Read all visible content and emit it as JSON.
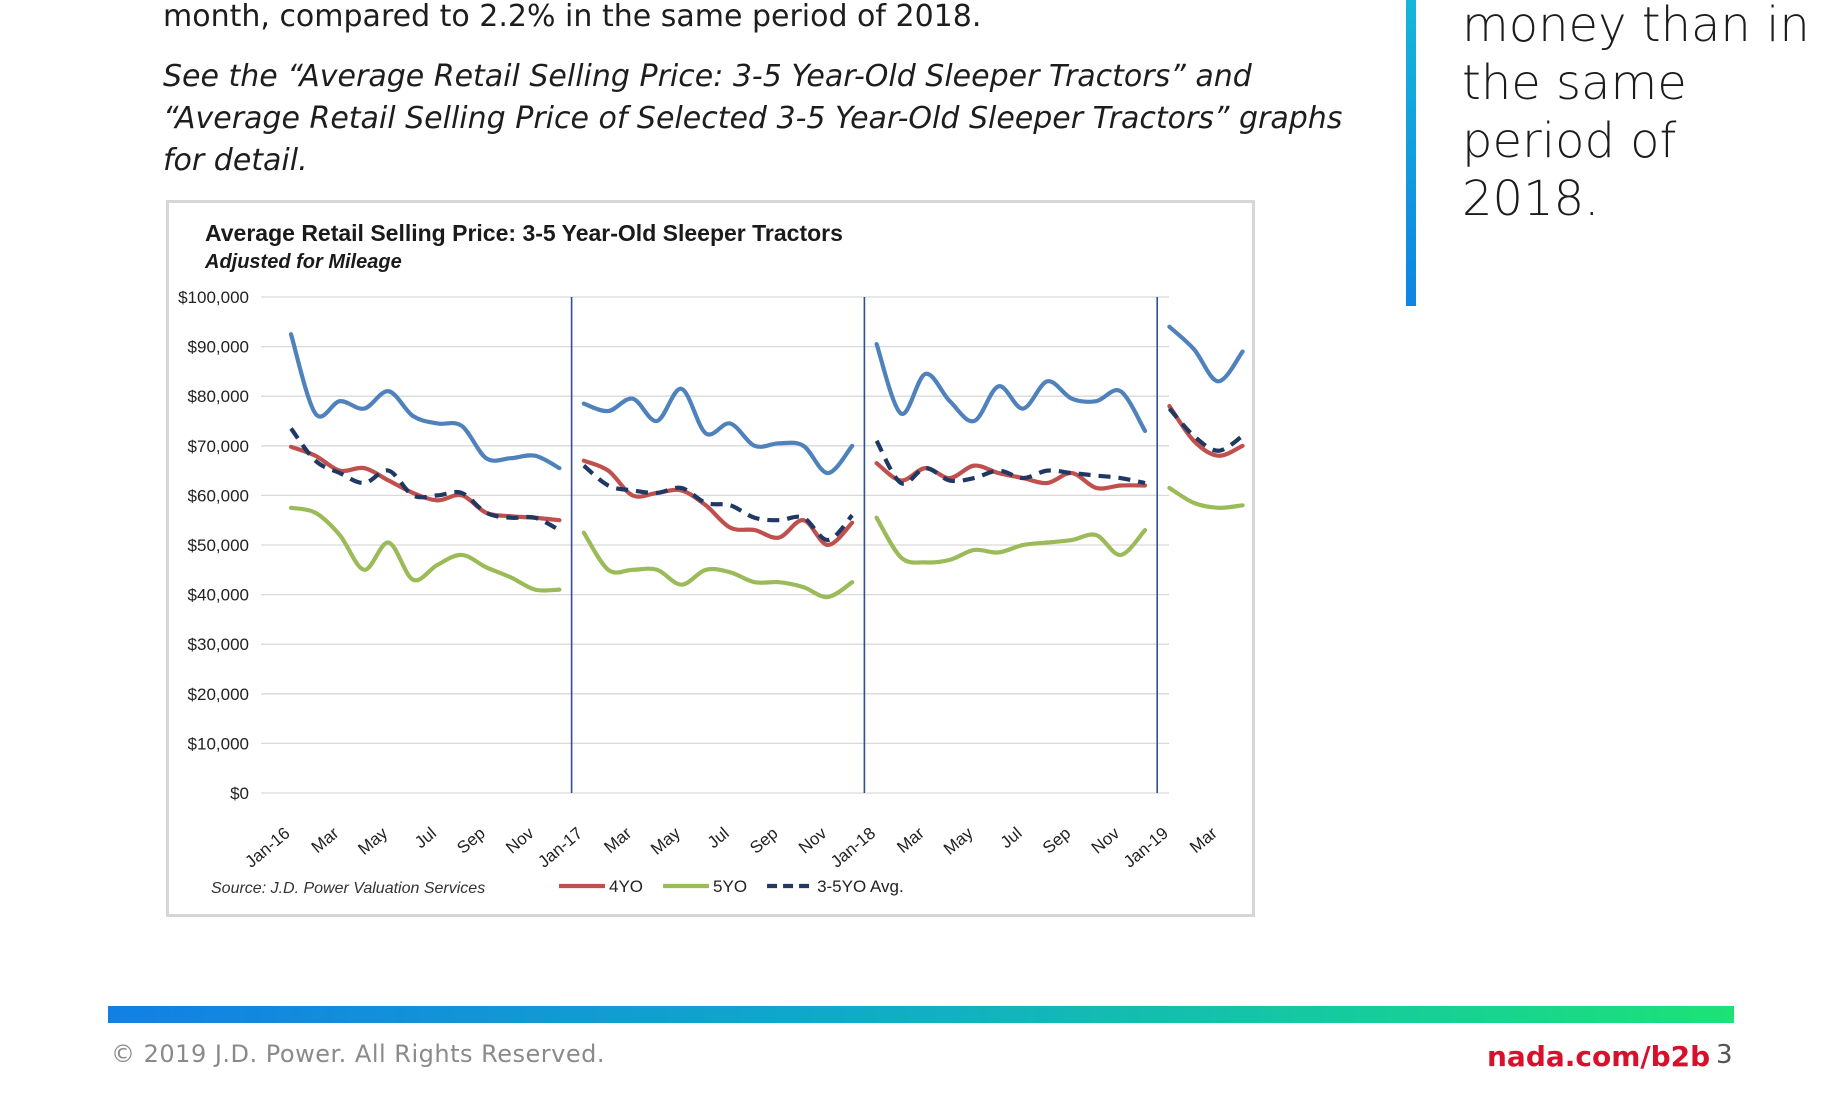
{
  "body": {
    "intro_text": "month, compared to 2.2% in the same period of 2018.",
    "see_also_text": "See the “Average Retail Selling Price: 3-5 Year-Old Sleeper Tractors” and “Average Retail Selling Price of Selected 3-5 Year-Old Sleeper Tractors” graphs for detail."
  },
  "callout": {
    "text": "money than in the same period of 2018.",
    "accent_color": "#0f84e2"
  },
  "chart_data": {
    "type": "line",
    "title": "Average Retail Selling Price: 3-5 Year-Old Sleeper Tractors",
    "subtitle": "Adjusted for Mileage",
    "source": "Source: J.D. Power Valuation Services",
    "xlabel": "",
    "ylabel": "",
    "ylim": [
      0,
      100000
    ],
    "y_ticks": [
      "$0",
      "$10,000",
      "$20,000",
      "$30,000",
      "$40,000",
      "$50,000",
      "$60,000",
      "$70,000",
      "$80,000",
      "$90,000",
      "$100,000"
    ],
    "x_tick_labels": [
      "Jan-16",
      "Mar",
      "May",
      "Jul",
      "Sep",
      "Nov",
      "Jan-17",
      "Mar",
      "May",
      "Jul",
      "Sep",
      "Nov",
      "Jan-18",
      "Mar",
      "May",
      "Jul",
      "Sep",
      "Nov",
      "Jan-19",
      "Mar"
    ],
    "year_dividers": [
      "Jan-17",
      "Jan-18",
      "Jan-19"
    ],
    "grid": true,
    "legend_position": "bottom",
    "series": [
      {
        "name": "",
        "color": "#4f81bd",
        "dashed": false,
        "values": [
          [
            92500,
            76500,
            79000,
            77500,
            81000,
            76000,
            74500,
            74000,
            67500,
            67500,
            68000,
            65500
          ],
          [
            78500,
            77000,
            79500,
            75000,
            81500,
            72500,
            74500,
            70000,
            70500,
            70000,
            64500,
            70000
          ],
          [
            90500,
            76500,
            84500,
            79000,
            75000,
            82000,
            77500,
            83000,
            79500,
            79000,
            81000,
            73000
          ],
          [
            94000,
            89500,
            83000,
            89000
          ]
        ]
      },
      {
        "name": "4YO",
        "color": "#c0504d",
        "dashed": false,
        "values": [
          [
            69800,
            68000,
            65000,
            65500,
            63000,
            60500,
            59000,
            60000,
            56500,
            55800,
            55500,
            55000
          ],
          [
            67000,
            65000,
            60000,
            60500,
            61000,
            58000,
            53500,
            53000,
            51500,
            55000,
            50000,
            54500
          ],
          [
            66500,
            63000,
            65500,
            63500,
            66000,
            64500,
            63500,
            62500,
            64500,
            61500,
            62000,
            62000
          ],
          [
            78000,
            71000,
            68000,
            70000
          ]
        ]
      },
      {
        "name": "5YO",
        "color": "#9bbb59",
        "dashed": false,
        "values": [
          [
            57500,
            56500,
            52000,
            45000,
            50500,
            43000,
            46000,
            48000,
            45500,
            43500,
            41000,
            41000
          ],
          [
            52500,
            45000,
            45000,
            45000,
            42000,
            45000,
            44500,
            42500,
            42500,
            41500,
            39500,
            42500
          ],
          [
            55500,
            47500,
            46500,
            47000,
            49000,
            48500,
            50000,
            50500,
            51000,
            52000,
            48000,
            53000
          ],
          [
            61500,
            58500,
            57500,
            58000
          ]
        ]
      },
      {
        "name": "3-5YO Avg.",
        "color": "#1f3864",
        "dashed": true,
        "values": [
          [
            73500,
            67000,
            64500,
            62500,
            65000,
            60000,
            60000,
            60500,
            56500,
            55500,
            55500,
            53000
          ],
          [
            66000,
            62000,
            61000,
            60500,
            61500,
            58500,
            58000,
            55500,
            55000,
            55500,
            51000,
            56000
          ],
          [
            71000,
            62500,
            65500,
            63000,
            63500,
            65000,
            63500,
            65000,
            64500,
            64000,
            63500,
            62500
          ],
          [
            77500,
            72000,
            69000,
            72000
          ]
        ]
      }
    ]
  },
  "footer": {
    "copyright": "© 2019 J.D. Power. All Rights Reserved.",
    "link": "nada.com/b2b",
    "page": "3"
  }
}
